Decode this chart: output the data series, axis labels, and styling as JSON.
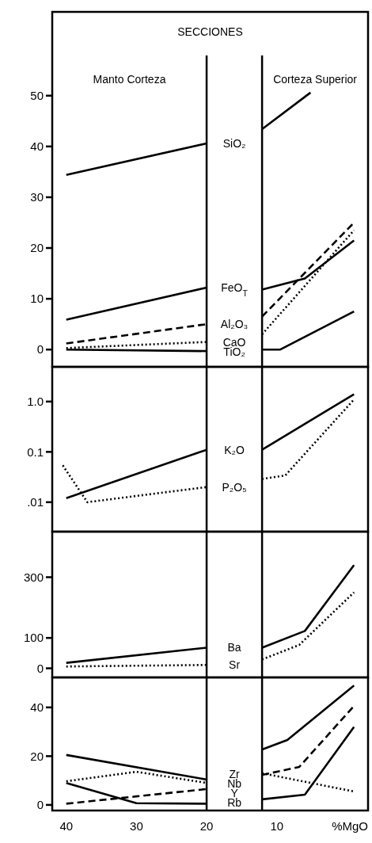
{
  "chart_data": [
    {
      "type": "line",
      "title": "SECCIONES",
      "annotations": [
        "Manto Corteza",
        "Corteza Superior"
      ],
      "xlim": [
        42,
        -3
      ],
      "ylim": [
        -3.4,
        66.5
      ],
      "yticks": [
        0,
        10,
        20,
        30,
        40,
        50
      ],
      "tick_labels": "y",
      "grid": false,
      "marker": "none",
      "ref_lines": [
        {
          "axis": "x",
          "value": 20,
          "color": "#000000"
        },
        {
          "axis": "x",
          "value": 12.1,
          "color": "#000000"
        }
      ],
      "series": [
        {
          "name": "SiO₂",
          "color": "#000000",
          "line_style": "solid",
          "x": [
            40,
            20,
            16,
            12.1,
            5.2
          ],
          "values": [
            34.4,
            40.6,
            null,
            43.4,
            50.6
          ]
        },
        {
          "name": "FeO$_{T}$",
          "color": "#000000",
          "line_style": "solid",
          "x": [
            40,
            20,
            16,
            12.1,
            6,
            -1
          ],
          "values": [
            5.9,
            12.2,
            null,
            11.8,
            14,
            21.5
          ]
        },
        {
          "name": "Al₂O₃",
          "color": "#000000",
          "line_style": "dashed",
          "x": [
            40,
            20,
            16,
            12.1,
            -1
          ],
          "values": [
            1.2,
            5,
            null,
            6.5,
            25
          ]
        },
        {
          "name": "CaO",
          "color": "#000000",
          "line_style": "dotted",
          "x": [
            40,
            20,
            16,
            12.1,
            -1
          ],
          "values": [
            0.3,
            1.5,
            null,
            3,
            23.5
          ]
        },
        {
          "name": "TiO₂",
          "color": "#000000",
          "line_style": "solid",
          "x": [
            40,
            20,
            16,
            12.1,
            9.5,
            -1
          ],
          "values": [
            0,
            -0.3,
            null,
            0,
            0,
            7.5
          ]
        }
      ]
    },
    {
      "type": "line",
      "log": true,
      "xlim": [
        42,
        -3
      ],
      "ylim": [
        0.0026,
        4.9
      ],
      "yticks": [
        {
          "value": 1,
          "label": "1.0"
        },
        {
          "value": 0.1,
          "label": "0.1"
        },
        {
          "value": 0.01,
          "label": ".01"
        }
      ],
      "tick_labels": "y",
      "grid": false,
      "marker": "none",
      "ref_lines": [
        {
          "axis": "x",
          "value": 20,
          "color": "#000000"
        },
        {
          "axis": "x",
          "value": 12.1,
          "color": "#000000"
        }
      ],
      "series": [
        {
          "name": "K₂O",
          "color": "#000000",
          "line_style": "solid",
          "x": [
            40,
            20,
            16,
            12.1,
            -1
          ],
          "values": [
            0.012,
            0.11,
            null,
            0.11,
            1.4
          ]
        },
        {
          "name": "P₂O₅",
          "color": "#000000",
          "line_style": "dotted",
          "x": [
            40.5,
            37,
            20,
            16,
            12.1,
            8.8,
            -1
          ],
          "values": [
            0.054,
            0.01,
            0.02,
            null,
            0.029,
            0.034,
            1.1
          ]
        }
      ]
    },
    {
      "type": "line",
      "xlim": [
        42,
        -3
      ],
      "ylim": [
        -30,
        450
      ],
      "yticks": [
        0,
        100,
        300
      ],
      "tick_labels": "y",
      "grid": false,
      "marker": "none",
      "ref_lines": [
        {
          "axis": "x",
          "value": 20,
          "color": "#000000"
        },
        {
          "axis": "x",
          "value": 12.1,
          "color": "#000000"
        }
      ],
      "series": [
        {
          "name": "Ba",
          "color": "#000000",
          "line_style": "solid",
          "x": [
            40,
            20,
            16,
            12.1,
            6,
            -1
          ],
          "values": [
            18,
            68,
            null,
            68,
            123,
            340
          ]
        },
        {
          "name": "Sr",
          "color": "#000000",
          "line_style": "dotted",
          "x": [
            40,
            20,
            16,
            12.1,
            6.8,
            -1
          ],
          "values": [
            6,
            11,
            null,
            29,
            77,
            250
          ]
        }
      ]
    },
    {
      "type": "line",
      "xlabel": "%MgO",
      "xlim": [
        42,
        -3
      ],
      "xticks": [
        40,
        30,
        20,
        10
      ],
      "ylim": [
        -2.3,
        52.3
      ],
      "yticks": [
        0,
        20,
        40
      ],
      "grid": false,
      "marker": "none",
      "ref_lines": [
        {
          "axis": "x",
          "value": 20,
          "color": "#000000"
        },
        {
          "axis": "x",
          "value": 12.1,
          "color": "#000000"
        }
      ],
      "series": [
        {
          "name": "Zr",
          "color": "#000000",
          "line_style": "solid",
          "x": [
            40,
            20,
            16,
            12.1,
            8.5,
            -1
          ],
          "values": [
            20.5,
            10.4,
            null,
            22.7,
            26.6,
            49
          ]
        },
        {
          "name": "Nb",
          "color": "#000000",
          "line_style": "dashed",
          "x": [
            40,
            30,
            20,
            16,
            12.1,
            6.8,
            -1
          ],
          "values": [
            0.5,
            3.5,
            6.5,
            null,
            12.3,
            15.6,
            40.6
          ]
        },
        {
          "name": "Y",
          "color": "#000000",
          "line_style": "dotted",
          "x": [
            40,
            30,
            20,
            16,
            12.1,
            -1
          ],
          "values": [
            9.7,
            13.6,
            9,
            null,
            13,
            5.5
          ]
        },
        {
          "name": "Rb",
          "color": "#000000",
          "line_style": "solid",
          "x": [
            40,
            30,
            20,
            16,
            12.1,
            6,
            -1
          ],
          "values": [
            9,
            0.7,
            0.5,
            null,
            2.3,
            4.2,
            32
          ]
        }
      ]
    }
  ]
}
